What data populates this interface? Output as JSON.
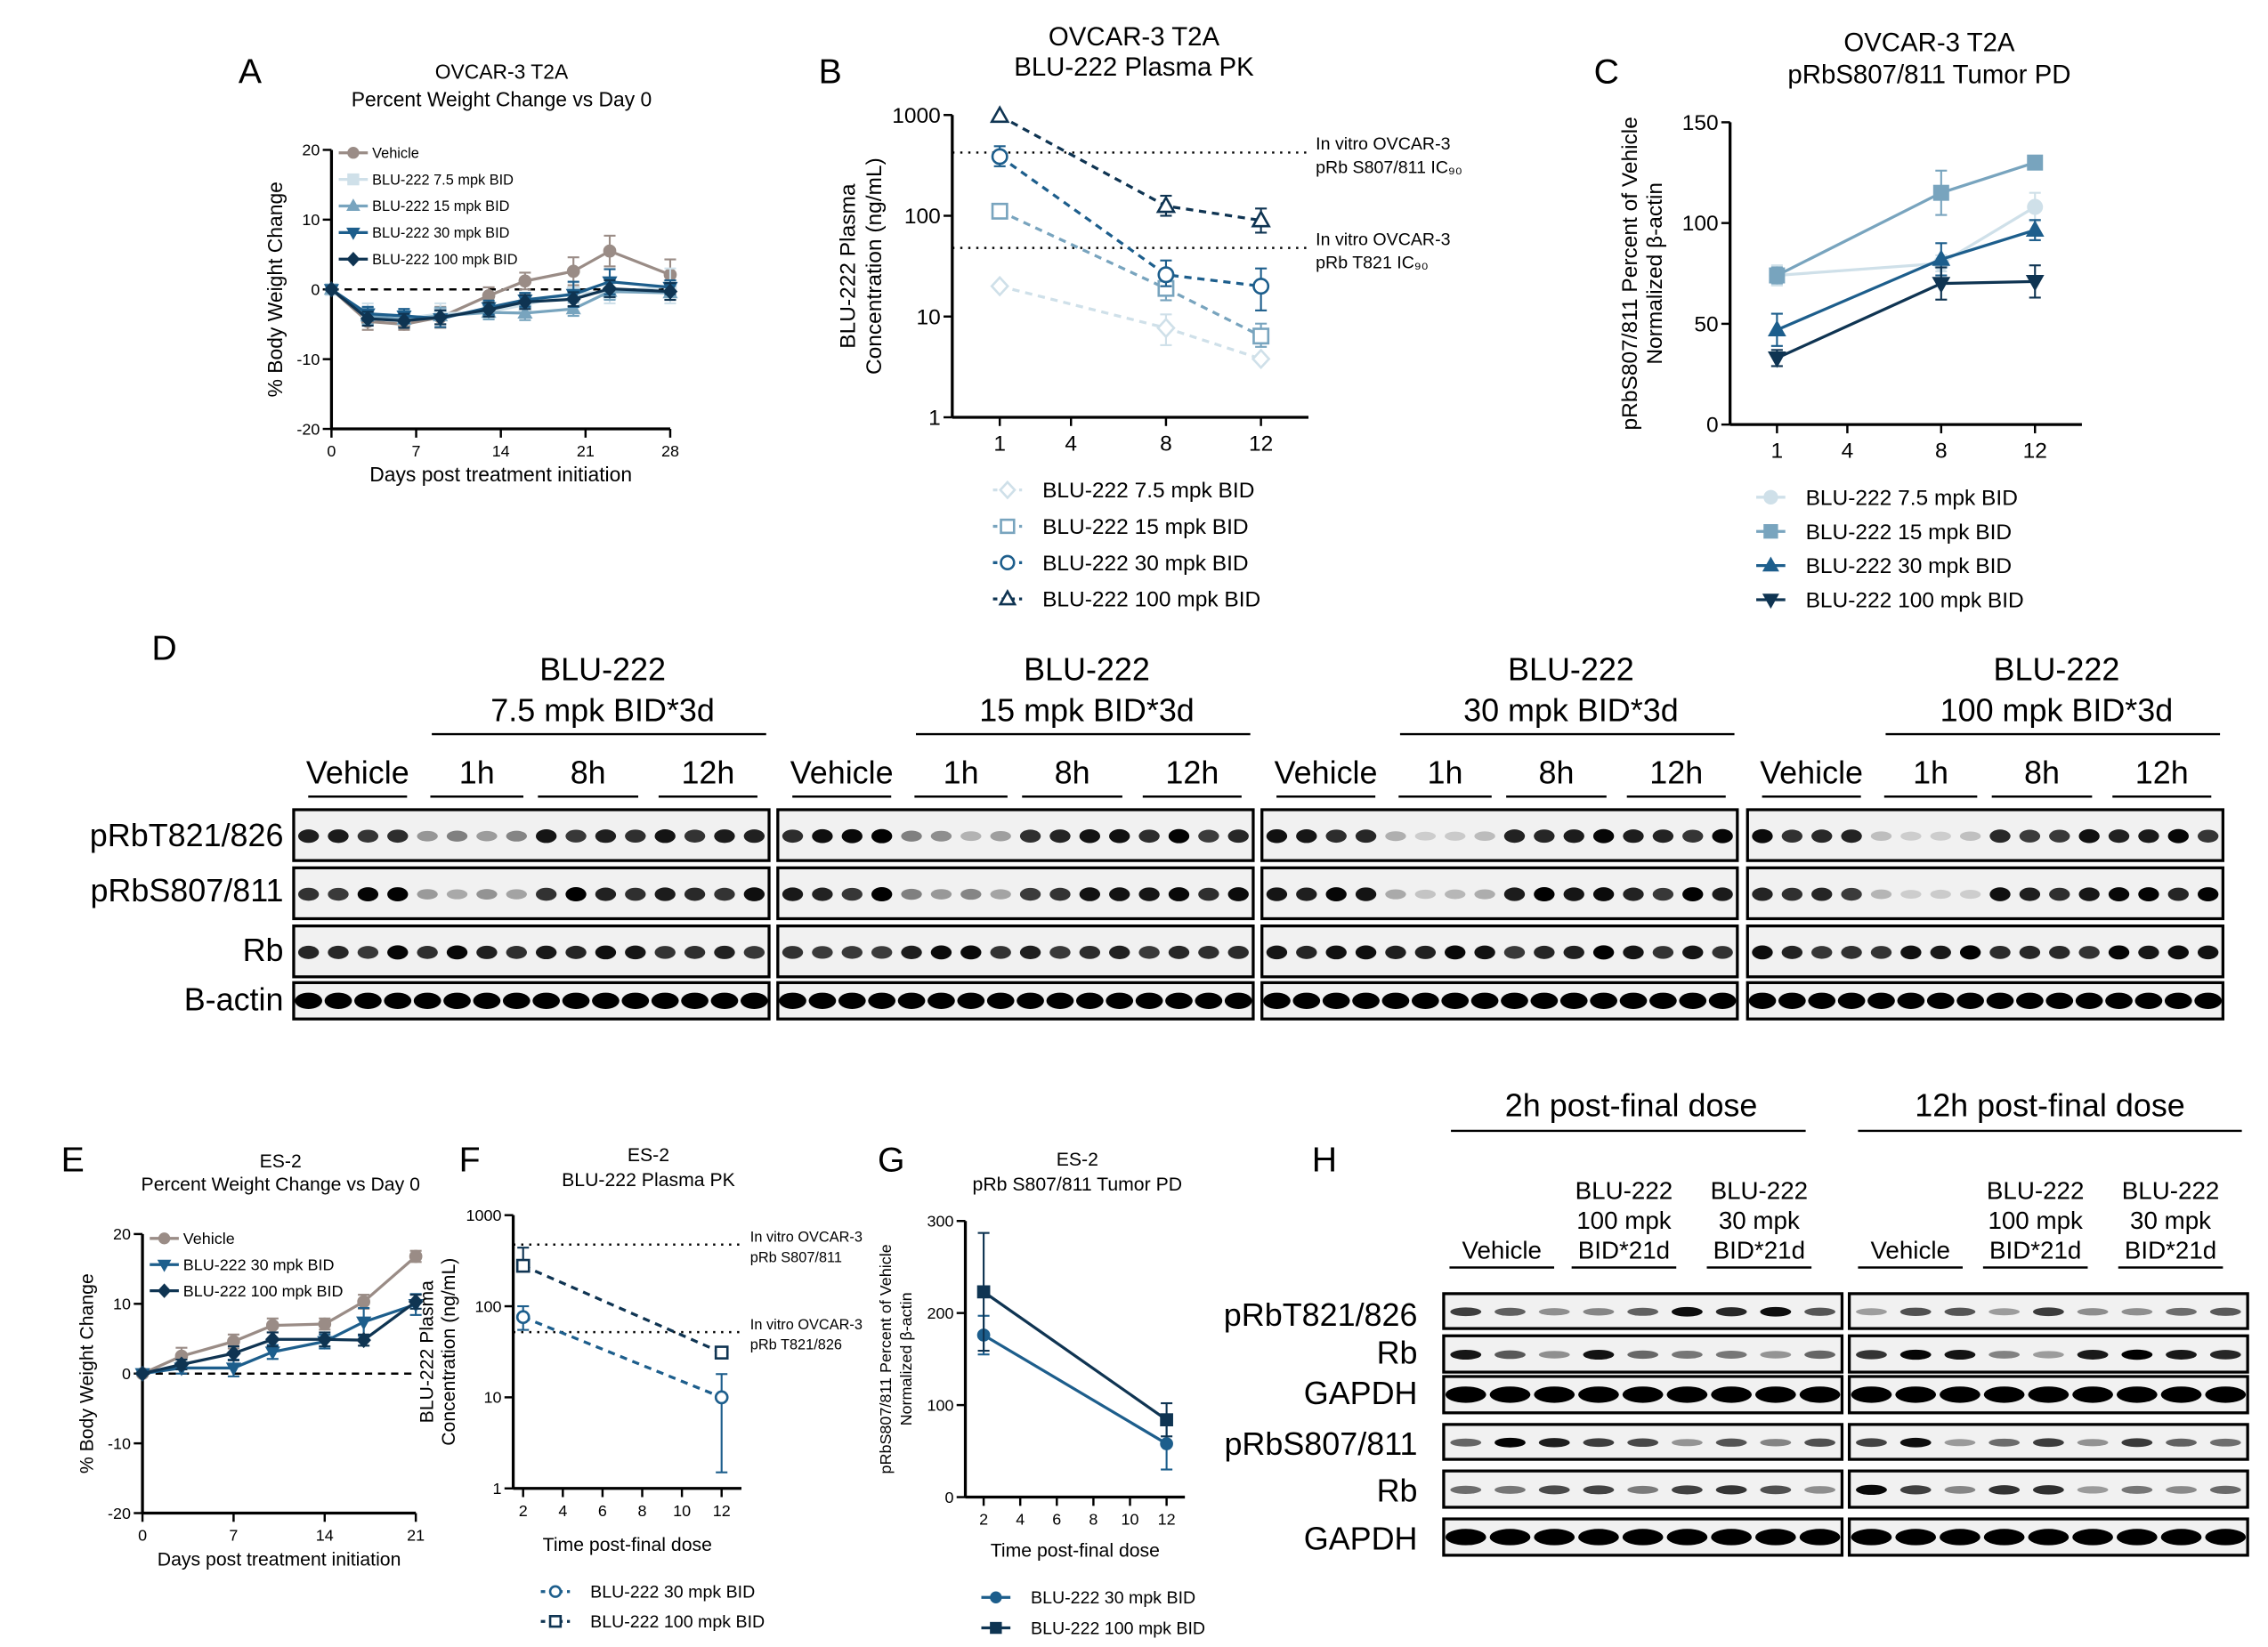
{
  "panels": {
    "A": "A",
    "B": "B",
    "C": "C",
    "D": "D",
    "E": "E",
    "F": "F",
    "G": "G",
    "H": "H"
  },
  "colors": {
    "vehicle": "#9a8c86",
    "d7_5": "#cfe0e9",
    "d15": "#78a4be",
    "d30": "#1d5e8c",
    "d100": "#0f3452"
  },
  "chart_data": [
    {
      "panel": "A",
      "type": "line",
      "title": [
        "OVCAR-3 T2A",
        "Percent Weight Change vs Day 0"
      ],
      "xlabel": "Days post treatment initiation",
      "ylabel": [
        "% Body Weight Change"
      ],
      "xlim": [
        0,
        28
      ],
      "ylim": [
        -20,
        20
      ],
      "yscale": "linear",
      "xticks": [
        0,
        7,
        14,
        21,
        28
      ],
      "yticks": [
        -20,
        -10,
        0,
        10,
        20
      ],
      "reference_lines": [
        {
          "y": 0,
          "style": "dashed"
        }
      ],
      "legend": "top-left",
      "series": [
        {
          "name": "Vehicle",
          "color": "#9a8c86",
          "marker": "circle",
          "x": [
            0,
            3,
            6,
            9,
            13,
            16,
            20,
            23,
            28
          ],
          "y": [
            0,
            -4.6,
            -5.0,
            -4.0,
            -0.9,
            1.2,
            2.6,
            5.5,
            2.1
          ],
          "err": [
            0,
            1.2,
            0.8,
            1.5,
            1.2,
            1.2,
            2.0,
            2.2,
            2.2
          ]
        },
        {
          "name": "BLU-222 7.5 mpk BID",
          "color": "#cfe0e9",
          "marker": "square",
          "x": [
            0,
            3,
            6,
            9,
            13,
            16,
            20,
            23,
            28
          ],
          "y": [
            0,
            -3.5,
            -4.2,
            -3.5,
            -3.2,
            -2.2,
            -0.5,
            -0.5,
            0.5
          ],
          "err": [
            0,
            1.5,
            1.3,
            1.5,
            1.0,
            1.2,
            1.5,
            1.5,
            2.5
          ]
        },
        {
          "name": "BLU-222 15 mpk BID",
          "color": "#78a4be",
          "marker": "triangle",
          "x": [
            0,
            3,
            6,
            9,
            13,
            16,
            20,
            23,
            28
          ],
          "y": [
            0,
            -3.8,
            -4.3,
            -3.8,
            -3.3,
            -3.4,
            -2.8,
            -0.3,
            -0.5
          ],
          "err": [
            0,
            1.2,
            1.2,
            1.2,
            1.0,
            1.0,
            1.0,
            1.2,
            1.0
          ]
        },
        {
          "name": "BLU-222 30 mpk BID",
          "color": "#1d5e8c",
          "marker": "triangle-down",
          "x": [
            0,
            3,
            6,
            9,
            13,
            16,
            20,
            23,
            28
          ],
          "y": [
            0,
            -3.5,
            -3.8,
            -4.2,
            -2.6,
            -1.5,
            -0.7,
            1.1,
            0.3
          ],
          "err": [
            0,
            1.0,
            1.0,
            1.2,
            1.0,
            1.0,
            1.8,
            1.8,
            1.0
          ]
        },
        {
          "name": "BLU-222 100 mpk BID",
          "color": "#0f3452",
          "marker": "diamond",
          "x": [
            0,
            3,
            6,
            9,
            13,
            16,
            20,
            23,
            28
          ],
          "y": [
            0,
            -4.2,
            -4.5,
            -4.0,
            -2.9,
            -1.8,
            -1.4,
            0.1,
            -0.3
          ],
          "err": [
            0,
            1.0,
            1.0,
            1.0,
            1.0,
            1.0,
            1.0,
            1.2,
            1.2
          ]
        }
      ]
    },
    {
      "panel": "B",
      "type": "line",
      "title": [
        "OVCAR-3 T2A",
        "BLU-222 Plasma PK"
      ],
      "xlabel": "",
      "ylabel": [
        "BLU-222 Plasma",
        "Concentration (ng/mL)"
      ],
      "xlim": [
        -1,
        14
      ],
      "ylim": [
        1,
        1000
      ],
      "yscale": "log",
      "xticks": [
        1,
        4,
        8,
        12
      ],
      "yticks": [
        1,
        10,
        100,
        1000
      ],
      "reference_lines": [
        {
          "y": 424,
          "style": "dotted",
          "label": [
            "In vitro OVCAR-3",
            "pRb S807/811 IC₉₀"
          ]
        },
        {
          "y": 48,
          "style": "dotted",
          "label": [
            "In vitro OVCAR-3",
            "pRb T821 IC₉₀"
          ]
        }
      ],
      "legend": "bottom",
      "series": [
        {
          "name": "BLU-222 7.5 mpk BID",
          "color": "#cfe0e9",
          "marker": "diamond-open",
          "dashed": true,
          "x": [
            1,
            8,
            12
          ],
          "y": [
            20,
            7.7,
            3.8
          ],
          "err_lo": [
            20,
            5.2,
            3.8
          ],
          "err_hi": [
            20,
            10.5,
            3.8
          ]
        },
        {
          "name": "BLU-222 15 mpk BID",
          "color": "#78a4be",
          "marker": "square-open",
          "dashed": true,
          "x": [
            1,
            8,
            12
          ],
          "y": [
            111,
            19,
            6.4
          ],
          "err_lo": [
            111,
            14.5,
            5
          ],
          "err_hi": [
            111,
            26,
            8.5
          ]
        },
        {
          "name": "BLU-222 30 mpk BID",
          "color": "#1d5e8c",
          "marker": "circle-open",
          "dashed": true,
          "x": [
            1,
            8,
            12
          ],
          "y": [
            387,
            26,
            20
          ],
          "err_lo": [
            310,
            20,
            11.5
          ],
          "err_hi": [
            490,
            36,
            30
          ]
        },
        {
          "name": "BLU-222 100 mpk BID",
          "color": "#0f3452",
          "marker": "triangle-open",
          "dashed": true,
          "x": [
            1,
            8,
            12
          ],
          "y": [
            980,
            125,
            90
          ],
          "err_lo": [
            980,
            100,
            68
          ],
          "err_hi": [
            980,
            158,
            118
          ]
        }
      ]
    },
    {
      "panel": "C",
      "type": "line",
      "title": [
        "OVCAR-3 T2A",
        "pRbS807/811 Tumor PD"
      ],
      "xlabel": "",
      "ylabel": [
        "pRbS807/811 Percent of Vehicle",
        "Normalized β-actin"
      ],
      "xlim": [
        -1,
        14
      ],
      "ylim": [
        0,
        150
      ],
      "yscale": "linear",
      "xticks": [
        1,
        4,
        8,
        12
      ],
      "yticks": [
        0,
        50,
        100,
        150
      ],
      "reference_lines": [],
      "legend": "bottom",
      "series": [
        {
          "name": "BLU-222 7.5 mpk BID",
          "color": "#cfe0e9",
          "marker": "circle",
          "x": [
            1,
            8,
            12
          ],
          "y": [
            74,
            80,
            108
          ],
          "err": [
            5,
            4,
            7
          ]
        },
        {
          "name": "BLU-222 15 mpk BID",
          "color": "#78a4be",
          "marker": "square",
          "x": [
            1,
            8,
            12
          ],
          "y": [
            74,
            115,
            130
          ],
          "err": [
            4,
            11,
            0
          ]
        },
        {
          "name": "BLU-222 30 mpk BID",
          "color": "#1d5e8c",
          "marker": "triangle",
          "x": [
            1,
            8,
            12
          ],
          "y": [
            47,
            82,
            96.5
          ],
          "err": [
            8,
            8,
            5
          ]
        },
        {
          "name": "BLU-222 100 mpk BID",
          "color": "#0f3452",
          "marker": "triangle-down",
          "x": [
            1,
            8,
            12
          ],
          "y": [
            33,
            70,
            71
          ],
          "err": [
            4,
            8,
            8
          ]
        }
      ]
    },
    {
      "panel": "E",
      "type": "line",
      "title": [
        "ES-2",
        "Percent Weight Change vs Day 0"
      ],
      "xlabel": "Days post treatment initiation",
      "ylabel": [
        "% Body Weight Change"
      ],
      "xlim": [
        0,
        21
      ],
      "ylim": [
        -20,
        20
      ],
      "yscale": "linear",
      "xticks": [
        0,
        7,
        14,
        21
      ],
      "yticks": [
        -20,
        -10,
        0,
        10,
        20
      ],
      "reference_lines": [
        {
          "y": 0,
          "style": "dashed"
        }
      ],
      "legend": "top-left",
      "series": [
        {
          "name": "Vehicle",
          "color": "#9a8c86",
          "marker": "circle",
          "x": [
            0,
            3,
            7,
            10,
            14,
            17,
            21
          ],
          "y": [
            0,
            2.5,
            4.6,
            6.9,
            7.1,
            10.3,
            16.8
          ],
          "err": [
            0,
            1.2,
            1.0,
            1.0,
            0.8,
            1.0,
            0.8
          ]
        },
        {
          "name": "BLU-222 30 mpk BID",
          "color": "#1d5e8c",
          "marker": "triangle-down",
          "x": [
            0,
            3,
            7,
            10,
            14,
            17,
            21
          ],
          "y": [
            0,
            0.8,
            0.8,
            3.1,
            4.6,
            7.4,
            9.9
          ],
          "err": [
            0,
            0.8,
            1.2,
            1.0,
            1.0,
            2.0,
            1.5
          ]
        },
        {
          "name": "BLU-222 100 mpk BID",
          "color": "#0f3452",
          "marker": "diamond",
          "x": [
            0,
            3,
            7,
            10,
            14,
            17,
            21
          ],
          "y": [
            0,
            1.3,
            2.9,
            4.9,
            4.9,
            4.8,
            10.3
          ],
          "err": [
            0,
            0.7,
            1.0,
            1.0,
            1.0,
            0.8,
            1.0
          ]
        }
      ]
    },
    {
      "panel": "F",
      "type": "line",
      "title": [
        "ES-2",
        "BLU-222 Plasma PK"
      ],
      "xlabel": "Time post-final dose",
      "ylabel": [
        "BLU-222 Plasma",
        "Concentration (ng/mL)"
      ],
      "xlim": [
        1.5,
        13
      ],
      "ylim": [
        1,
        1000
      ],
      "yscale": "log",
      "xticks": [
        2,
        4,
        6,
        8,
        10,
        12
      ],
      "yticks": [
        1,
        10,
        100,
        1000
      ],
      "reference_lines": [
        {
          "y": 475,
          "style": "dotted",
          "label": [
            "In vitro OVCAR-3",
            "pRb S807/811"
          ]
        },
        {
          "y": 52,
          "style": "dotted",
          "label": [
            "In vitro OVCAR-3",
            "pRb T821/826"
          ]
        }
      ],
      "legend": "bottom",
      "series": [
        {
          "name": "BLU-222 30 mpk BID",
          "color": "#1d5e8c",
          "marker": "circle-open",
          "dashed": true,
          "x": [
            2,
            12
          ],
          "y": [
            76,
            10
          ],
          "err_lo": [
            55,
            1.5
          ],
          "err_hi": [
            100,
            18
          ]
        },
        {
          "name": "BLU-222 100 mpk BID",
          "color": "#0f3452",
          "marker": "square-open",
          "dashed": true,
          "x": [
            2,
            12
          ],
          "y": [
            278,
            31
          ],
          "err_lo": [
            278,
            31
          ],
          "err_hi": [
            440,
            31
          ]
        }
      ]
    },
    {
      "panel": "G",
      "type": "line",
      "title": [
        "ES-2",
        "pRb S807/811 Tumor PD"
      ],
      "xlabel": "Time post-final dose",
      "ylabel": [
        "pRbS807/811 Percent of Vehicle",
        "Normalized β-actin"
      ],
      "xlim": [
        1,
        13
      ],
      "ylim": [
        0,
        300
      ],
      "yscale": "linear",
      "xticks": [
        2,
        4,
        6,
        8,
        10,
        12
      ],
      "yticks": [
        0,
        100,
        200,
        300
      ],
      "reference_lines": [],
      "legend": "bottom",
      "series": [
        {
          "name": "BLU-222 30 mpk BID",
          "color": "#1d5e8c",
          "marker": "circle",
          "x": [
            2,
            12
          ],
          "y": [
            176,
            58
          ],
          "err": [
            21,
            28
          ]
        },
        {
          "name": "BLU-222 100 mpk BID",
          "color": "#0f3452",
          "marker": "square",
          "x": [
            2,
            12
          ],
          "y": [
            223,
            84
          ],
          "err": [
            64,
            18
          ]
        }
      ]
    }
  ],
  "blot_d": {
    "row_labels": [
      "pRbT821/826",
      "pRbS807/811",
      "Rb",
      "B-actin"
    ],
    "groups": [
      {
        "title": "BLU-222",
        "dose": "7.5 mpk BID*3d",
        "lanes": [
          "Vehicle",
          "1h",
          "8h",
          "12h"
        ]
      },
      {
        "title": "BLU-222",
        "dose": "15 mpk BID*3d",
        "lanes": [
          "Vehicle",
          "1h",
          "8h",
          "12h"
        ]
      },
      {
        "title": "BLU-222",
        "dose": "30 mpk BID*3d",
        "lanes": [
          "Vehicle",
          "1h",
          "8h",
          "12h"
        ]
      },
      {
        "title": "BLU-222",
        "dose": "100 mpk BID*3d",
        "lanes": [
          "Vehicle",
          "1h",
          "8h",
          "12h"
        ]
      }
    ]
  },
  "blot_h": {
    "timepoints": [
      "2h post-final dose",
      "12h post-final dose"
    ],
    "conditions": [
      [
        "Vehicle"
      ],
      [
        "BLU-222",
        "100 mpk",
        "BID*21d"
      ],
      [
        "BLU-222",
        "30 mpk",
        "BID*21d"
      ]
    ],
    "row_labels": [
      "pRbT821/826",
      "Rb",
      "GAPDH",
      "pRbS807/811",
      "Rb",
      "GAPDH"
    ]
  }
}
